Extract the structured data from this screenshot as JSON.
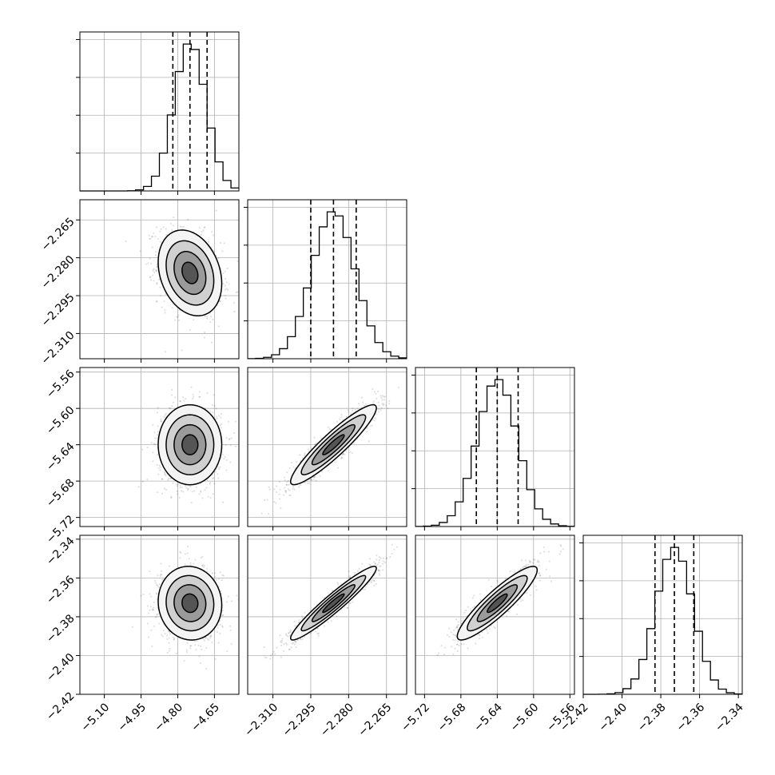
{
  "chart_data": {
    "type": "corner",
    "n_params": 4,
    "axes": [
      {
        "range": [
          -5.2,
          -4.55
        ],
        "ticks": [
          -5.1,
          -4.95,
          -4.8,
          -4.65
        ],
        "tick_labels": [
          "−5.10",
          "−4.95",
          "−4.80",
          "−4.65"
        ],
        "mean": -4.75,
        "sd": 0.065,
        "q16": -4.82,
        "q50": -4.75,
        "q84": -4.68
      },
      {
        "range": [
          -2.32,
          -2.257
        ],
        "ticks": [
          -2.31,
          -2.295,
          -2.28,
          -2.265
        ],
        "tick_labels": [
          "−2.310",
          "−2.295",
          "−2.280",
          "−2.265"
        ],
        "mean": -2.286,
        "sd": 0.0085,
        "q16": -2.295,
        "q50": -2.286,
        "q84": -2.277
      },
      {
        "range": [
          -5.73,
          -5.555
        ],
        "ticks": [
          -5.72,
          -5.68,
          -5.64,
          -5.6,
          -5.56
        ],
        "tick_labels": [
          "−5.72",
          "−5.68",
          "−5.64",
          "−5.60",
          "−5.56"
        ],
        "mean": -5.64,
        "sd": 0.022,
        "q16": -5.663,
        "q50": -5.64,
        "q84": -5.617
      },
      {
        "range": [
          -2.42,
          -2.338
        ],
        "ticks": [
          -2.42,
          -2.4,
          -2.38,
          -2.36,
          -2.34
        ],
        "tick_labels": [
          "−2.42",
          "−2.40",
          "−2.38",
          "−2.36",
          "−2.34"
        ],
        "mean": -2.373,
        "sd": 0.0095,
        "q16": -2.383,
        "q50": -2.373,
        "q84": -2.363
      }
    ],
    "correlations": [
      [
        1,
        -0.25,
        0.0,
        -0.05
      ],
      [
        -0.25,
        1,
        0.92,
        0.95
      ],
      [
        0.0,
        0.92,
        1,
        0.9
      ],
      [
        -0.05,
        0.95,
        0.9,
        1
      ]
    ],
    "histogram_bins": 20,
    "quantile_lines": [
      0.16,
      0.5,
      0.84
    ],
    "contour_levels": 4,
    "grid": true
  }
}
